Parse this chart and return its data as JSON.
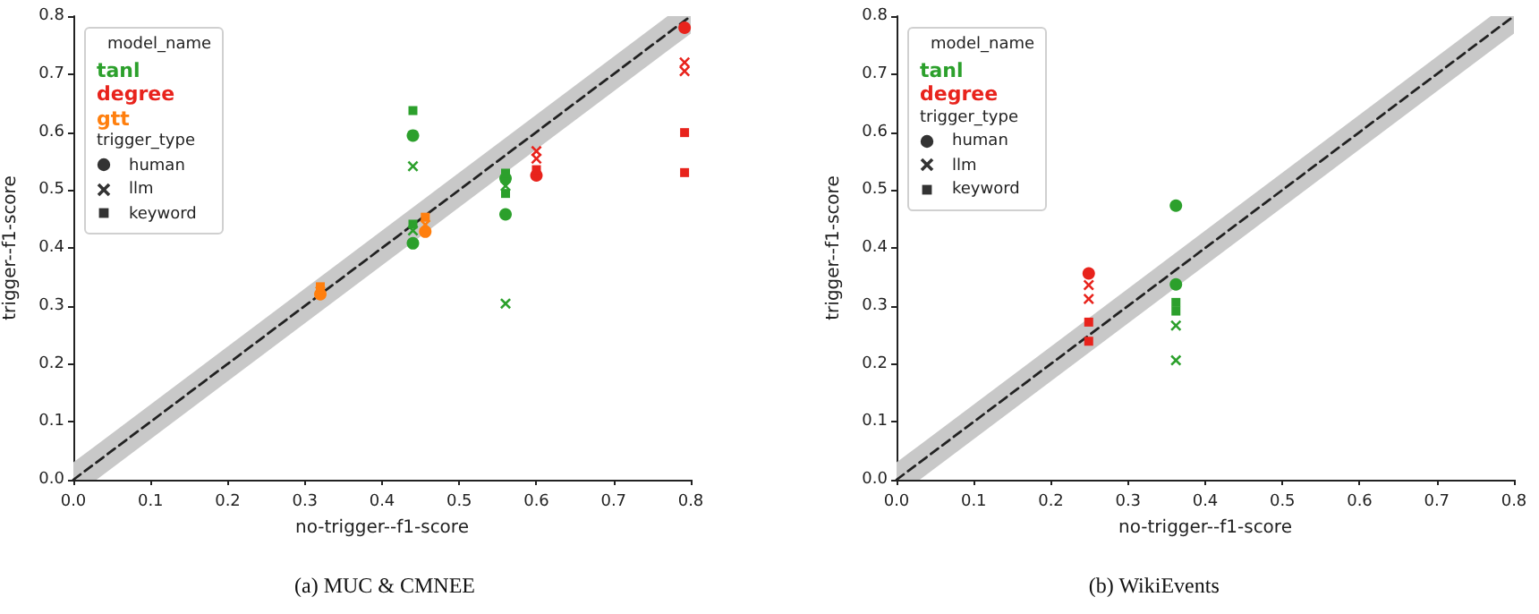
{
  "chart_data": [
    {
      "type": "scatter",
      "xlabel": "no-trigger--f1-score",
      "ylabel": "trigger--f1-score",
      "xlim": [
        0,
        0.8
      ],
      "ylim": [
        0,
        0.8
      ],
      "xticks": [
        {
          "value": 0,
          "label": "0.0"
        },
        {
          "value": 0.1,
          "label": "0.1"
        },
        {
          "value": 0.2,
          "label": "0.2"
        },
        {
          "value": 0.3,
          "label": "0.3"
        },
        {
          "value": 0.4,
          "label": "0.4"
        },
        {
          "value": 0.5,
          "label": "0.5"
        },
        {
          "value": 0.6,
          "label": "0.6"
        },
        {
          "value": 0.7,
          "label": "0.7"
        },
        {
          "value": 0.8,
          "label": "0.8"
        }
      ],
      "yticks": [
        {
          "value": 0,
          "label": "0.0"
        },
        {
          "value": 0.1,
          "label": "0.1"
        },
        {
          "value": 0.2,
          "label": "0.2"
        },
        {
          "value": 0.3,
          "label": "0.3"
        },
        {
          "value": 0.4,
          "label": "0.4"
        },
        {
          "value": 0.5,
          "label": "0.5"
        },
        {
          "value": 0.6,
          "label": "0.6"
        },
        {
          "value": 0.7,
          "label": "0.7"
        },
        {
          "value": 0.8,
          "label": "0.8"
        }
      ],
      "grid": false,
      "legend": "top left",
      "legend_title": "model_name",
      "annotations": [
        "trigger_type",
        "human",
        "llm",
        "keyword",
        "(a) MUC & CMNEE"
      ],
      "series": [
        {
          "type": "line",
          "line_style": "dashed",
          "color": "#222222",
          "x": [
            0,
            0.03,
            0.77,
            0.8
          ],
          "values": [
            0,
            0.03,
            0.77,
            0.8
          ],
          "lower": [
            0,
            0,
            0.74,
            0.77
          ],
          "upper": [
            0.03,
            0.06,
            0.8,
            0.8
          ]
        },
        {
          "name": "tanl",
          "color": "#2ca02c",
          "marker": "circle",
          "x": [
            0.44,
            0.44,
            0.56,
            0.56
          ],
          "values": [
            0.594,
            0.408,
            0.52,
            0.458
          ]
        },
        {
          "color": "#2ca02c",
          "marker": "cross",
          "x": [
            0.44,
            0.44,
            0.56,
            0.56
          ],
          "values": [
            0.541,
            0.43,
            0.507,
            0.304
          ]
        },
        {
          "color": "#2ca02c",
          "marker": "square",
          "x": [
            0.44,
            0.44,
            0.56,
            0.56
          ],
          "values": [
            0.637,
            0.441,
            0.529,
            0.494
          ]
        },
        {
          "name": "degree",
          "color": "#e8231c",
          "marker": "circle",
          "x": [
            0.6,
            0.792
          ],
          "values": [
            0.525,
            0.78
          ]
        },
        {
          "color": "#e8231c",
          "marker": "cross",
          "x": [
            0.6,
            0.6,
            0.792,
            0.792
          ],
          "values": [
            0.567,
            0.554,
            0.72,
            0.705
          ]
        },
        {
          "color": "#e8231c",
          "marker": "square",
          "x": [
            0.6,
            0.792,
            0.792
          ],
          "values": [
            0.535,
            0.599,
            0.53
          ]
        },
        {
          "name": "gtt",
          "color": "#ff7f0e",
          "marker": "circle",
          "x": [
            0.32,
            0.456
          ],
          "values": [
            0.32,
            0.428
          ]
        },
        {
          "color": "#ff7f0e",
          "marker": "cross",
          "x": [
            0.32,
            0.456
          ],
          "values": [
            0.325,
            0.44
          ]
        },
        {
          "color": "#ff7f0e",
          "marker": "square",
          "x": [
            0.32,
            0.456
          ],
          "values": [
            0.333,
            0.453
          ]
        }
      ]
    },
    {
      "type": "scatter",
      "xlabel": "no-trigger--f1-score",
      "ylabel": "trigger--f1-score",
      "xlim": [
        0,
        0.8
      ],
      "ylim": [
        0,
        0.8
      ],
      "xticks": [
        {
          "value": 0,
          "label": "0.0"
        },
        {
          "value": 0.1,
          "label": "0.1"
        },
        {
          "value": 0.2,
          "label": "0.2"
        },
        {
          "value": 0.3,
          "label": "0.3"
        },
        {
          "value": 0.4,
          "label": "0.4"
        },
        {
          "value": 0.5,
          "label": "0.5"
        },
        {
          "value": 0.6,
          "label": "0.6"
        },
        {
          "value": 0.7,
          "label": "0.7"
        },
        {
          "value": 0.8,
          "label": "0.8"
        }
      ],
      "yticks": [
        {
          "value": 0,
          "label": "0.0"
        },
        {
          "value": 0.1,
          "label": "0.1"
        },
        {
          "value": 0.2,
          "label": "0.2"
        },
        {
          "value": 0.3,
          "label": "0.3"
        },
        {
          "value": 0.4,
          "label": "0.4"
        },
        {
          "value": 0.5,
          "label": "0.5"
        },
        {
          "value": 0.6,
          "label": "0.6"
        },
        {
          "value": 0.7,
          "label": "0.7"
        },
        {
          "value": 0.8,
          "label": "0.8"
        }
      ],
      "grid": false,
      "legend": "top left",
      "legend_title": "model_name",
      "annotations": [
        "trigger_type",
        "human",
        "llm",
        "keyword",
        "(b) WikiEvents"
      ],
      "series": [
        {
          "type": "line",
          "line_style": "dashed",
          "color": "#222222",
          "x": [
            0,
            0.03,
            0.77,
            0.8
          ],
          "values": [
            0,
            0.03,
            0.77,
            0.8
          ],
          "lower": [
            0,
            0,
            0.74,
            0.77
          ],
          "upper": [
            0.03,
            0.06,
            0.8,
            0.8
          ]
        },
        {
          "name": "tanl",
          "color": "#2ca02c",
          "marker": "circle",
          "x": [
            0.362,
            0.362
          ],
          "values": [
            0.473,
            0.337
          ]
        },
        {
          "color": "#2ca02c",
          "marker": "cross",
          "x": [
            0.362,
            0.362
          ],
          "values": [
            0.266,
            0.206
          ]
        },
        {
          "color": "#2ca02c",
          "marker": "square",
          "x": [
            0.362,
            0.362
          ],
          "values": [
            0.306,
            0.291
          ]
        },
        {
          "name": "degree",
          "color": "#e8231c",
          "marker": "circle",
          "x": [
            0.249
          ],
          "values": [
            0.356
          ]
        },
        {
          "color": "#e8231c",
          "marker": "cross",
          "x": [
            0.249,
            0.249
          ],
          "values": [
            0.336,
            0.312
          ]
        },
        {
          "color": "#e8231c",
          "marker": "square",
          "x": [
            0.249,
            0.249
          ],
          "values": [
            0.272,
            0.239
          ]
        }
      ]
    }
  ]
}
